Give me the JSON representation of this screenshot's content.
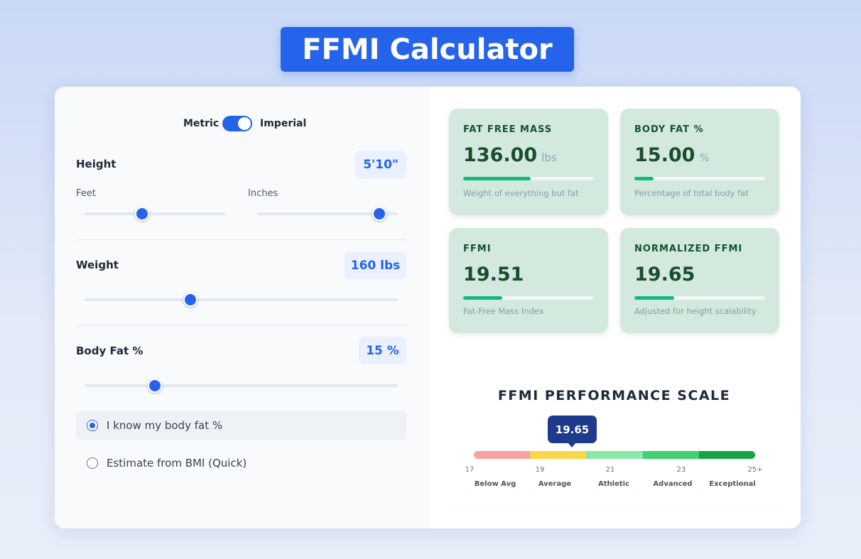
{
  "header": {
    "title": "FFMI Calculator"
  },
  "units": {
    "metric": "Metric",
    "imperial": "Imperial"
  },
  "inputs": {
    "height": {
      "label": "Height",
      "value": "5'10\"",
      "feet": "Feet",
      "inches": "Inches"
    },
    "weight": {
      "label": "Weight",
      "value": "160 lbs"
    },
    "body_fat": {
      "label": "Body Fat %",
      "value": "15 %"
    }
  },
  "options": [
    "I know my body fat %",
    "Estimate from BMI (Quick)"
  ],
  "results": [
    {
      "title": "FAT FREE MASS",
      "value": "136.00",
      "unit": "lbs",
      "caption": "Weight of everything but fat"
    },
    {
      "title": "BODY FAT %",
      "value": "15.00",
      "unit": "%",
      "caption": "Percentage of total body fat"
    },
    {
      "title": "FFMI",
      "value": "19.51",
      "caption": "Fat-Free Mass Index"
    },
    {
      "title": "NORMALIZED FFMI",
      "value": "19.65",
      "caption": "Adjusted for height scalability"
    }
  ],
  "scale": {
    "title": "FFMI PERFORMANCE SCALE",
    "marker": "19.65",
    "ticks": [
      "17",
      "19",
      "21",
      "23",
      "25+"
    ],
    "levels": [
      "Below Avg",
      "Average",
      "Athletic",
      "Advanced",
      "Exceptional"
    ]
  }
}
